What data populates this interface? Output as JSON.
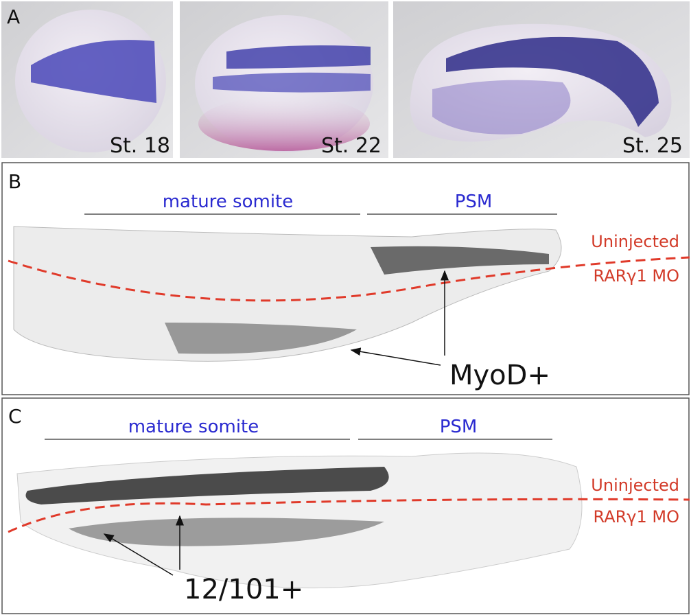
{
  "panel_a": {
    "label": "A",
    "stages": [
      "St. 18",
      "St. 22",
      "St. 25"
    ]
  },
  "panel_b": {
    "label": "B",
    "regions": [
      "mature somite",
      "PSM"
    ],
    "top_label": "Uninjected",
    "bottom_label": "RARγ1 MO",
    "marker": "MyoD+"
  },
  "panel_c": {
    "label": "C",
    "regions": [
      "mature somite",
      "PSM"
    ],
    "top_label": "Uninjected",
    "bottom_label": "RARγ1 MO",
    "marker": "12/101+"
  }
}
